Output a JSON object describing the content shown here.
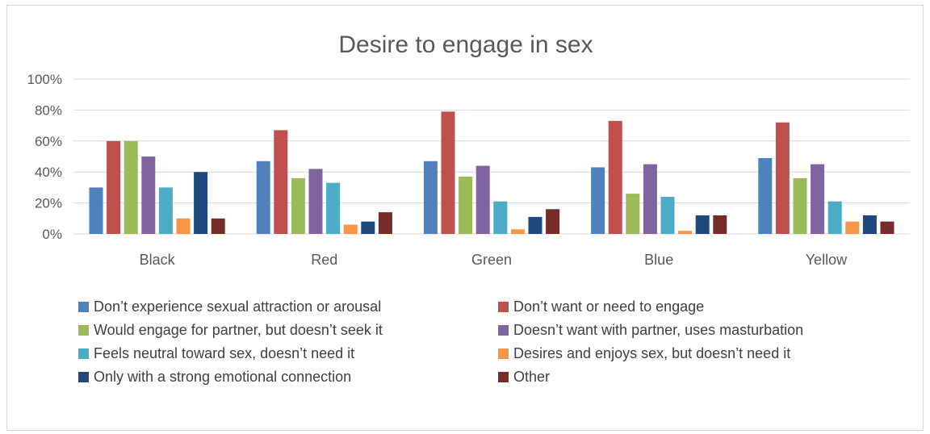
{
  "chart_data": {
    "type": "bar",
    "title": "Desire to engage in sex",
    "xlabel": "",
    "ylabel": "",
    "ylim": [
      0,
      100
    ],
    "yticks": [
      "0%",
      "20%",
      "40%",
      "60%",
      "80%",
      "100%"
    ],
    "grid": true,
    "legend_position": "bottom",
    "categories": [
      "Black",
      "Red",
      "Green",
      "Blue",
      "Yellow"
    ],
    "series": [
      {
        "name": "Don’t experience sexual attraction or arousal",
        "color": "#4f81bd",
        "values": [
          30,
          47,
          47,
          43,
          49
        ]
      },
      {
        "name": "Don’t want or need to engage",
        "color": "#c0504d",
        "values": [
          60,
          67,
          79,
          73,
          72
        ]
      },
      {
        "name": "Would engage for partner, but doesn’t seek it",
        "color": "#9bbb59",
        "values": [
          60,
          36,
          37,
          26,
          36
        ]
      },
      {
        "name": "Doesn’t want with partner, uses masturbation",
        "color": "#8064a2",
        "values": [
          50,
          42,
          44,
          45,
          45
        ]
      },
      {
        "name": "Feels neutral toward sex, doesn’t need it",
        "color": "#4bacc6",
        "values": [
          30,
          33,
          21,
          24,
          21
        ]
      },
      {
        "name": "Desires and enjoys sex, but doesn’t need it",
        "color": "#f79646",
        "values": [
          10,
          6,
          3,
          2,
          8
        ]
      },
      {
        "name": "Only with a strong emotional connection",
        "color": "#1f497d",
        "values": [
          40,
          8,
          11,
          12,
          12
        ]
      },
      {
        "name": "Other",
        "color": "#772c2a",
        "values": [
          10,
          14,
          16,
          12,
          8
        ]
      }
    ]
  }
}
